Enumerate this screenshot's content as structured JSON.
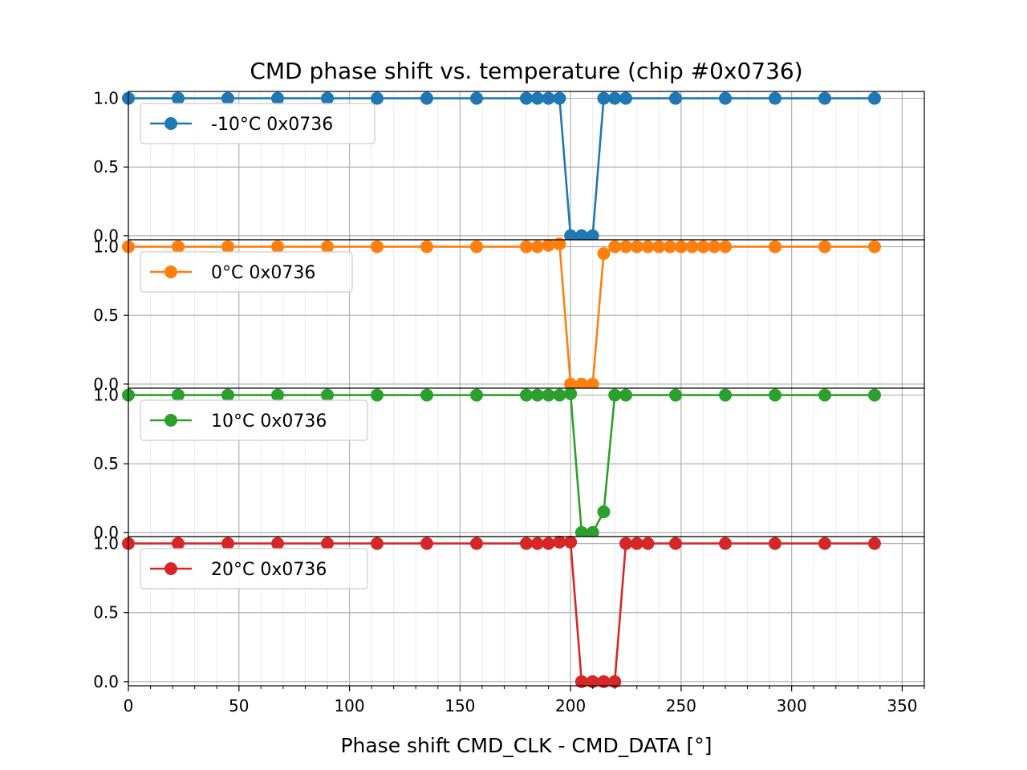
{
  "chart_data": {
    "type": "line",
    "title": "CMD phase shift vs. temperature (chip #0x0736)",
    "xlabel": "Phase shift CMD_CLK - CMD_DATA [°]",
    "ylabel": "",
    "xlim": [
      0,
      360
    ],
    "ylim": [
      -0.03,
      1.05
    ],
    "x_ticks": [
      0,
      50,
      100,
      150,
      200,
      250,
      300,
      350
    ],
    "x_tick_labels": [
      "0",
      "50",
      "100",
      "150",
      "200",
      "250",
      "300",
      "350"
    ],
    "y_ticks": [
      0.0,
      0.5,
      1.0
    ],
    "y_tick_labels": [
      "0.0",
      "0.5",
      "1.0"
    ],
    "grid": true,
    "legend_position": "upper-left",
    "series": [
      {
        "name": "-10°C 0x0736",
        "color": "#1f77b4",
        "x": [
          0,
          22.5,
          45,
          67.5,
          90,
          112.5,
          135,
          157.5,
          180,
          185,
          190,
          195,
          200,
          205,
          210,
          215,
          220,
          225,
          247.5,
          270,
          292.5,
          315,
          337.5
        ],
        "y": [
          1,
          1,
          1,
          1,
          1,
          1,
          1,
          1,
          1,
          1,
          1,
          1,
          0,
          0,
          0,
          1,
          1,
          1,
          1,
          1,
          1,
          1,
          1
        ]
      },
      {
        "name": "0°C 0x0736",
        "color": "#ff7f0e",
        "x": [
          0,
          22.5,
          45,
          67.5,
          90,
          112.5,
          135,
          157.5,
          180,
          185,
          190,
          195,
          200,
          205,
          210,
          215,
          220,
          225,
          230,
          235,
          240,
          245,
          250,
          255,
          260,
          265,
          270,
          292.5,
          315,
          337.5
        ],
        "y": [
          1,
          1,
          1,
          1,
          1,
          1,
          1,
          1,
          1,
          1,
          1.01,
          1.02,
          0,
          0,
          0,
          0.95,
          1,
          1,
          1,
          1,
          1,
          1,
          1,
          1,
          1,
          1,
          1,
          1,
          1,
          1
        ]
      },
      {
        "name": "10°C 0x0736",
        "color": "#2ca02c",
        "x": [
          0,
          22.5,
          45,
          67.5,
          90,
          112.5,
          135,
          157.5,
          180,
          185,
          190,
          195,
          200,
          205,
          210,
          215,
          220,
          225,
          247.5,
          270,
          292.5,
          315,
          337.5
        ],
        "y": [
          1,
          1,
          1,
          1,
          1,
          1,
          1,
          1,
          1,
          1,
          1,
          1,
          1.01,
          0,
          0,
          0.15,
          1,
          1,
          1,
          1,
          1,
          1,
          1
        ]
      },
      {
        "name": "20°C 0x0736",
        "color": "#d62728",
        "x": [
          0,
          22.5,
          45,
          67.5,
          90,
          112.5,
          135,
          157.5,
          180,
          185,
          190,
          195,
          200,
          205,
          210,
          215,
          220,
          225,
          230,
          235,
          247.5,
          270,
          292.5,
          315,
          337.5
        ],
        "y": [
          1,
          1,
          1,
          1,
          1,
          1,
          1,
          1,
          1,
          1,
          1,
          1.01,
          1.01,
          0,
          0,
          0,
          0,
          1,
          1,
          1,
          1,
          1,
          1,
          1,
          1
        ]
      }
    ]
  }
}
